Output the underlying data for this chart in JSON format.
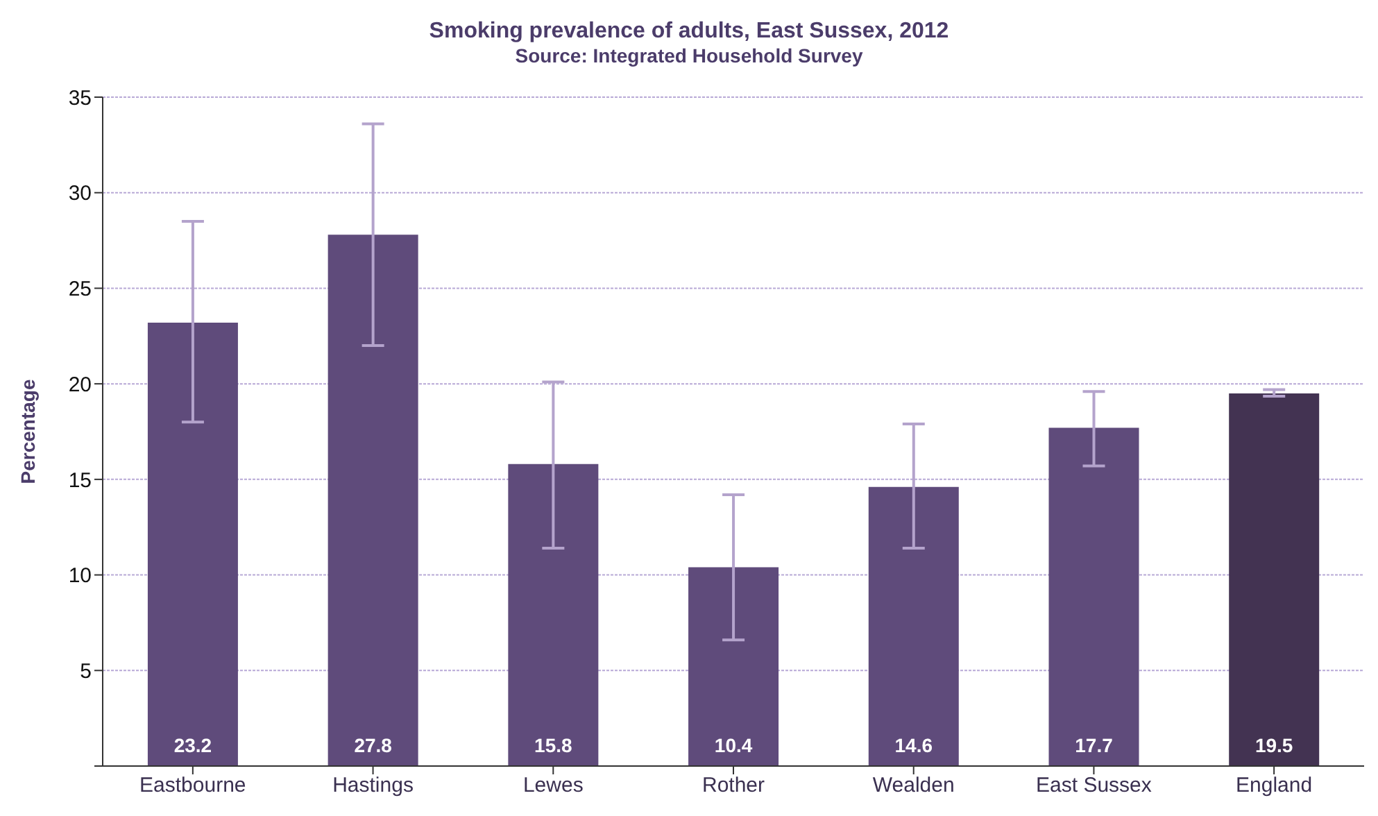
{
  "chart_data": {
    "type": "bar",
    "title": "Smoking prevalence of adults, East Sussex, 2012",
    "subtitle": "Source: Integrated Household Survey",
    "ylabel": "Percentage",
    "categories": [
      "Eastbourne",
      "Hastings",
      "Lewes",
      "Rother",
      "Wealden",
      "East Sussex",
      "England"
    ],
    "values": [
      23.2,
      27.8,
      15.8,
      10.4,
      14.6,
      17.7,
      19.5
    ],
    "colors": [
      "#5f4b7b",
      "#5f4b7b",
      "#5f4b7b",
      "#5f4b7b",
      "#5f4b7b",
      "#5f4b7b",
      "#433352"
    ],
    "errors": [
      [
        18.0,
        28.5
      ],
      [
        22.0,
        33.6
      ],
      [
        11.4,
        20.1
      ],
      [
        6.6,
        14.2
      ],
      [
        11.4,
        17.9
      ],
      [
        15.7,
        19.6
      ],
      [
        19.35,
        19.7
      ]
    ],
    "data_labels": true,
    "ylim": [
      0,
      35
    ],
    "yticks": [
      {
        "value": 0,
        "label": null
      },
      5,
      10,
      15,
      20,
      25,
      30,
      35
    ],
    "grid": "y",
    "legend": false
  }
}
